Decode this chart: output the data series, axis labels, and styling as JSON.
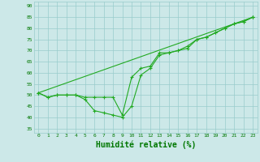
{
  "bg_color": "#cce8e8",
  "grid_color": "#99cccc",
  "line_color": "#22aa22",
  "xlabel": "Humidité relative (%)",
  "xlabel_color": "#007700",
  "ylabel_ticks": [
    35,
    40,
    45,
    50,
    55,
    60,
    65,
    70,
    75,
    80,
    85,
    90
  ],
  "xlim": [
    -0.5,
    23.5
  ],
  "ylim": [
    33,
    92
  ],
  "xtick_labels": [
    "0",
    "1",
    "2",
    "3",
    "4",
    "5",
    "6",
    "7",
    "8",
    "9",
    "10",
    "11",
    "12",
    "13",
    "14",
    "15",
    "16",
    "17",
    "18",
    "19",
    "20",
    "21",
    "22",
    "23"
  ],
  "series1_x": [
    0,
    1,
    2,
    3,
    4,
    5,
    6,
    7,
    8,
    9,
    10,
    11,
    12,
    13,
    14,
    15,
    16,
    17,
    18,
    19,
    20,
    21,
    22,
    23
  ],
  "series1_y": [
    51,
    49,
    50,
    50,
    50,
    49,
    49,
    49,
    49,
    41,
    58,
    62,
    63,
    69,
    69,
    70,
    72,
    75,
    76,
    78,
    80,
    82,
    83,
    85
  ],
  "series2_x": [
    0,
    1,
    2,
    3,
    4,
    5,
    6,
    7,
    8,
    9,
    10,
    11,
    12,
    13,
    14,
    15,
    16,
    17,
    18,
    19,
    20,
    21,
    22,
    23
  ],
  "series2_y": [
    51,
    49,
    50,
    50,
    50,
    48,
    43,
    42,
    41,
    40,
    45,
    59,
    62,
    68,
    69,
    70,
    71,
    75,
    76,
    78,
    80,
    82,
    83,
    85
  ],
  "series3_x": [
    0,
    23
  ],
  "series3_y": [
    51,
    85
  ]
}
